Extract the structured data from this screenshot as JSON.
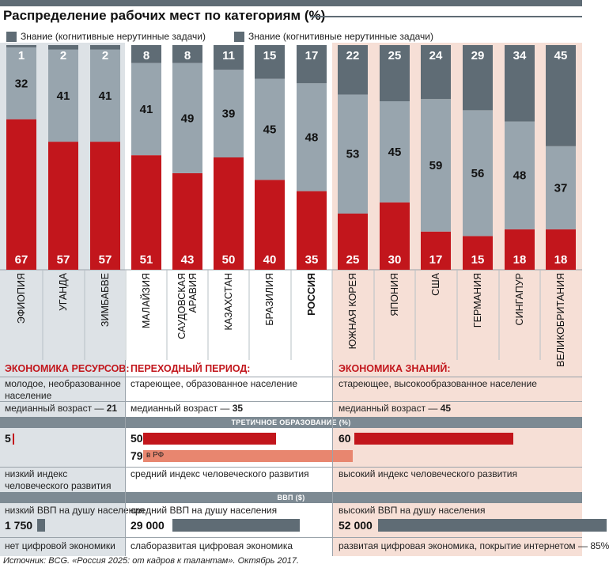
{
  "title": "Распределение рабочих мест по категориям (%)",
  "legend": [
    {
      "label": "Знание (когнитивные нерутинные задачи)",
      "color": "#5f6c75"
    },
    {
      "label": "Знание (когнитивные нерутинные задачи)",
      "color": "#5f6c75"
    }
  ],
  "colors": {
    "knowledge": "#5f6c75",
    "routine": "#98a5ae",
    "manual": "#c2161c",
    "bg_resources": "#dde2e6",
    "bg_transition": "#ffffff",
    "bg_knowledge": "#f6dfd6",
    "rf_bar": "#e8866f"
  },
  "chart_data": {
    "type": "bar",
    "stacked": true,
    "categories": [
      "ЭФИОПИЯ",
      "УГАНДА",
      "ЗИМБАБВЕ",
      "МАЛАЙЗИЯ",
      "САУДОВСКАЯ АРАВИЯ",
      "КАЗАХСТАН",
      "БРАЗИЛИЯ",
      "РОССИЯ",
      "ЮЖНАЯ КОРЕЯ",
      "ЯПОНИЯ",
      "США",
      "ГЕРМАНИЯ",
      "СИНГАПУР",
      "ВЕЛИКОБРИТАНИЯ"
    ],
    "category_lines": [
      [
        "ЭФИОПИЯ"
      ],
      [
        "УГАНДА"
      ],
      [
        "ЗИМБАБВЕ"
      ],
      [
        "МАЛАЙЗИЯ"
      ],
      [
        "САУДОВСКАЯ",
        "АРАВИЯ"
      ],
      [
        "КАЗАХСТАН"
      ],
      [
        "БРАЗИЛИЯ"
      ],
      [
        "РОССИЯ"
      ],
      [
        "ЮЖНАЯ КОРЕЯ"
      ],
      [
        "ЯПОНИЯ"
      ],
      [
        "США"
      ],
      [
        "ГЕРМАНИЯ"
      ],
      [
        "СИНГАПУР"
      ],
      [
        "ВЕЛИКОБРИТАНИЯ"
      ]
    ],
    "highlight_category": "РОССИЯ",
    "series": [
      {
        "values": [
          67,
          57,
          57,
          51,
          43,
          50,
          40,
          35,
          25,
          30,
          17,
          15,
          18,
          18
        ]
      },
      {
        "values": [
          32,
          41,
          41,
          41,
          49,
          39,
          45,
          48,
          53,
          45,
          59,
          56,
          48,
          37
        ]
      },
      {
        "values": [
          1,
          2,
          2,
          8,
          8,
          11,
          15,
          17,
          22,
          25,
          24,
          29,
          34,
          45
        ]
      }
    ],
    "ylim": [
      0,
      100
    ]
  },
  "groups": [
    {
      "title": "ЭКОНОМИКА РЕСУРСОВ:",
      "population": "молодое, необразованное население",
      "median_age_label": "медианный возраст — ",
      "median_age": "21",
      "tertiary": "5",
      "hdi": "низкий индекс человеческого развития",
      "gdp_label": "низкий ВВП на душу населения",
      "gdp": "1 750",
      "digital": "нет цифровой экономики"
    },
    {
      "title": "ПЕРЕХОДНЫЙ ПЕРИОД:",
      "population": "стареющее, образованное население",
      "median_age_label": "медианный возраст — ",
      "median_age": "35",
      "tertiary": "50",
      "tertiary_rf": "79",
      "tertiary_rf_label": "в РФ",
      "hdi": "средний индекс человеческого развития",
      "gdp_label": "средний ВВП на душу населения",
      "gdp": "29 000",
      "digital": "слаборазвитая цифровая экономика"
    },
    {
      "title": "ЭКОНОМИКА ЗНАНИЙ:",
      "population": "стареющее, высокообразованное население",
      "median_age_label": "медианный возраст — ",
      "median_age": "45",
      "tertiary": "60",
      "hdi": "высокий индекс человеческого развития",
      "gdp_label": "высокий ВВП на душу населения",
      "gdp": "52 000",
      "digital": "развитая цифровая экономика, покрытие интернетом — 85%"
    }
  ],
  "tertiary_title": "ТРЕТИЧНОЕ ОБРАЗОВАНИЕ (%)",
  "gdp_title": "ВВП ($)",
  "tertiary_values": [
    5,
    50,
    60,
    79
  ],
  "gdp_values": [
    1750,
    29000,
    52000
  ],
  "source": "Источник: BCG. «Россия 2025: от кадров к талантам». Октябрь 2017."
}
